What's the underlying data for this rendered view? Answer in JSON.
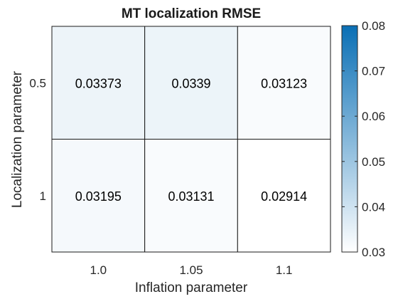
{
  "chart_data": {
    "type": "heatmap",
    "title": "MT localization RMSE",
    "xlabel": "Inflation parameter",
    "ylabel": "Localization parameter",
    "x_categories": [
      "1.0",
      "1.05",
      "1.1"
    ],
    "y_categories": [
      "0.5",
      "1"
    ],
    "cells": [
      {
        "x": "1.0",
        "y": "0.5",
        "value": 0.03373,
        "label": "0.03373"
      },
      {
        "x": "1.05",
        "y": "0.5",
        "value": 0.0339,
        "label": "0.0339"
      },
      {
        "x": "1.1",
        "y": "0.5",
        "value": 0.03123,
        "label": "0.03123"
      },
      {
        "x": "1.0",
        "y": "1",
        "value": 0.03195,
        "label": "0.03195"
      },
      {
        "x": "1.05",
        "y": "1",
        "value": 0.03131,
        "label": "0.03131"
      },
      {
        "x": "1.1",
        "y": "1",
        "value": 0.02914,
        "label": "0.02914"
      }
    ],
    "colorbar": {
      "min": 0.03,
      "max": 0.08,
      "ticks": [
        "0.03",
        "0.04",
        "0.05",
        "0.06",
        "0.07",
        "0.08"
      ],
      "color_low": "#ffffff",
      "color_high": "#0a6fb5"
    },
    "grid": true
  }
}
